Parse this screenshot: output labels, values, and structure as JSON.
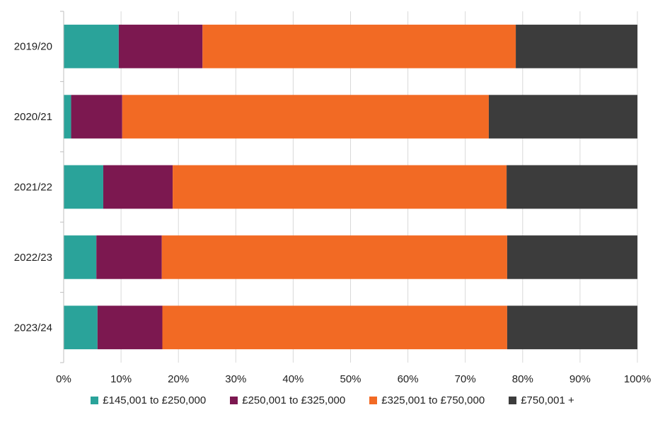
{
  "chart_data": {
    "type": "bar",
    "orientation": "horizontal",
    "stacked": true,
    "percent_stacked": true,
    "title": "",
    "xlabel": "",
    "ylabel": "",
    "xlim": [
      0,
      100
    ],
    "x_ticks": [
      "0%",
      "10%",
      "20%",
      "30%",
      "40%",
      "50%",
      "60%",
      "70%",
      "80%",
      "90%",
      "100%"
    ],
    "grid": "vertical",
    "legend_position": "bottom",
    "categories": [
      "2019/20",
      "2020/21",
      "2021/22",
      "2022/23",
      "2023/24"
    ],
    "series": [
      {
        "name": "£145,001 to £250,000",
        "color": "#2aa39a",
        "values": [
          9.6,
          1.3,
          6.9,
          5.7,
          5.9
        ]
      },
      {
        "name": "£250,001 to £325,000",
        "color": "#7c1850",
        "values": [
          14.6,
          8.9,
          12.1,
          11.4,
          11.3
        ]
      },
      {
        "name": "£325,001 to £750,000",
        "color": "#f26a24",
        "values": [
          54.6,
          63.9,
          58.2,
          60.2,
          60.1
        ]
      },
      {
        "name": "£750,001 +",
        "color": "#3c3c3c",
        "values": [
          21.2,
          25.9,
          22.8,
          22.7,
          22.7
        ]
      }
    ]
  }
}
